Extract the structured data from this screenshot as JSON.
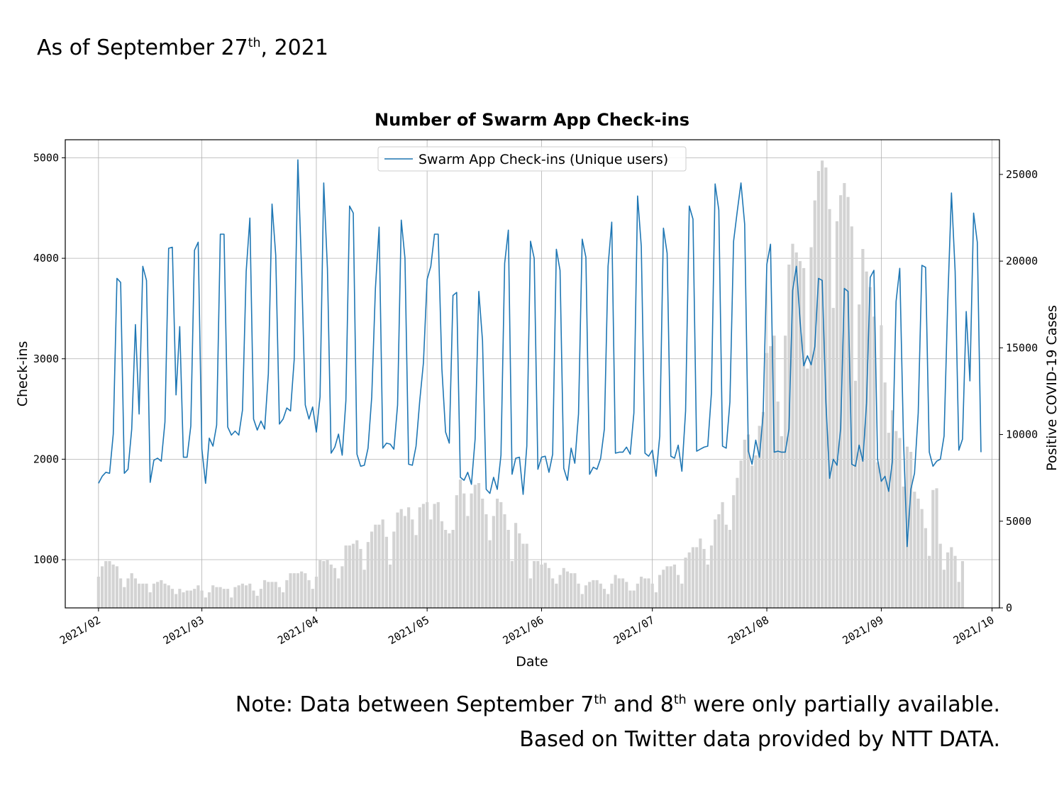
{
  "header": {
    "text_prefix": "As of September 27",
    "sup": "th",
    "text_suffix": ", 2021"
  },
  "notes": {
    "line1_a": "Note: Data between September 7",
    "line1_sup1": "th",
    "line1_b": " and 8",
    "line1_sup2": "th",
    "line1_c": " were only partially available.",
    "line2": "Based on Twitter data provided by NTT DATA."
  },
  "chart_data": {
    "type": "line",
    "title": "Number of Swarm App Check-ins",
    "xlabel": "Date",
    "ylabel": "Check-ins",
    "y2label": "Positive COVID-19 Cases",
    "x_range": [
      "2021-01-23",
      "2021-10-03"
    ],
    "ylim": [
      520,
      5180
    ],
    "y2lim": [
      0,
      27000
    ],
    "y_ticks": [
      1000,
      2000,
      3000,
      4000,
      5000
    ],
    "y2_ticks": [
      0,
      5000,
      10000,
      15000,
      20000,
      25000
    ],
    "x_ticks": [
      "2021/02",
      "2021/03",
      "2021/04",
      "2021/05",
      "2021/06",
      "2021/07",
      "2021/08",
      "2021/09",
      "2021/10"
    ],
    "x_tick_dates": [
      "2021-02-01",
      "2021-03-01",
      "2021-04-01",
      "2021-05-01",
      "2021-06-01",
      "2021-07-01",
      "2021-08-01",
      "2021-09-01",
      "2021-10-01"
    ],
    "grid": true,
    "legend": "top-center",
    "line_color": "#1f77b4",
    "bar_color": "#d3d3d3",
    "series": [
      {
        "name": "Swarm App Check-ins (Unique users)",
        "axis": "left",
        "style": "line",
        "start_date": "2021-02-01",
        "values": [
          1760,
          1830,
          1870,
          1860,
          2250,
          3800,
          3760,
          1860,
          1900,
          2300,
          3340,
          2450,
          3920,
          3780,
          1770,
          1990,
          2010,
          1980,
          2370,
          4100,
          4110,
          2640,
          3320,
          2020,
          2020,
          2330,
          4080,
          4160,
          2100,
          1760,
          2210,
          2130,
          2340,
          4240,
          4240,
          2320,
          2240,
          2280,
          2240,
          2490,
          3870,
          4400,
          2400,
          2290,
          2380,
          2300,
          2850,
          4540,
          4030,
          2350,
          2400,
          2510,
          2480,
          2990,
          4980,
          3890,
          2540,
          2400,
          2520,
          2270,
          2620,
          4750,
          3900,
          2060,
          2120,
          2250,
          2040,
          2580,
          4520,
          4450,
          2050,
          1930,
          1940,
          2110,
          2620,
          3700,
          4310,
          2110,
          2160,
          2150,
          2100,
          2540,
          4380,
          4000,
          1950,
          1940,
          2130,
          2580,
          2960,
          3790,
          3920,
          4240,
          4240,
          2900,
          2270,
          2160,
          3630,
          3660,
          1820,
          1790,
          1870,
          1750,
          2200,
          3670,
          3180,
          1700,
          1660,
          1820,
          1700,
          2040,
          3950,
          4280,
          1850,
          2010,
          2020,
          1650,
          2130,
          4170,
          4000,
          1900,
          2020,
          2030,
          1870,
          2050,
          4090,
          3880,
          1910,
          1790,
          2110,
          1960,
          2450,
          4190,
          4010,
          1850,
          1920,
          1900,
          2010,
          2300,
          3920,
          4360,
          2060,
          2070,
          2070,
          2120,
          2050,
          2460,
          4620,
          4120,
          2060,
          2030,
          2090,
          1830,
          2230,
          4300,
          4050,
          2030,
          2010,
          2140,
          1880,
          2480,
          4520,
          4390,
          2080,
          2100,
          2120,
          2130,
          2660,
          4740,
          4480,
          2130,
          2110,
          2570,
          4170,
          4470,
          4750,
          4340,
          2080,
          1950,
          2190,
          2020,
          2450,
          3940,
          4140,
          2070,
          2080,
          2070,
          2070,
          2300,
          3680,
          3920,
          3380,
          2930,
          3030,
          2940,
          3120,
          3800,
          3780,
          2570,
          1810,
          2000,
          1940,
          2310,
          3700,
          3670,
          1950,
          1930,
          2140,
          1980,
          2560,
          3810,
          3880,
          2000,
          1780,
          1830,
          1680,
          1980,
          3570,
          3900,
          2210,
          1130,
          1700,
          1860,
          2460,
          3930,
          3910,
          2070,
          1930,
          1980,
          2000,
          2230,
          3570,
          4650,
          3870,
          2090,
          2200,
          3470,
          2780,
          4450,
          4160,
          2070
        ]
      },
      {
        "name": "Positive COVID-19 Cases",
        "axis": "right",
        "style": "bar",
        "start_date": "2021-02-01",
        "values": [
          1800,
          2400,
          2700,
          2700,
          2500,
          2400,
          1700,
          1200,
          1700,
          2000,
          1700,
          1400,
          1400,
          1400,
          900,
          1400,
          1500,
          1600,
          1400,
          1300,
          1100,
          800,
          1100,
          900,
          1000,
          1000,
          1100,
          1300,
          1000,
          600,
          900,
          1300,
          1200,
          1200,
          1100,
          1100,
          600,
          1200,
          1300,
          1400,
          1300,
          1400,
          1000,
          700,
          1100,
          1600,
          1500,
          1500,
          1500,
          1200,
          900,
          1600,
          2000,
          2000,
          2000,
          2100,
          2000,
          1600,
          1100,
          1800,
          2800,
          2700,
          2800,
          2500,
          2300,
          1700,
          2400,
          3600,
          3600,
          3700,
          3900,
          3400,
          2200,
          3800,
          4400,
          4800,
          4800,
          5100,
          4100,
          2500,
          4400,
          5500,
          5700,
          5300,
          5800,
          5100,
          4200,
          5800,
          6000,
          6100,
          5100,
          6000,
          6100,
          5000,
          4500,
          4300,
          4500,
          6500,
          7400,
          6600,
          5300,
          6600,
          7100,
          7200,
          6300,
          5400,
          3900,
          5300,
          6300,
          6100,
          5400,
          4500,
          2700,
          4900,
          4300,
          3700,
          3700,
          1700,
          2700,
          2700,
          2500,
          2600,
          2300,
          1700,
          1400,
          1900,
          2300,
          2100,
          2000,
          2000,
          1400,
          800,
          1300,
          1500,
          1600,
          1600,
          1400,
          1100,
          800,
          1400,
          1900,
          1700,
          1700,
          1500,
          1000,
          1000,
          1400,
          1800,
          1700,
          1700,
          1400,
          900,
          1900,
          2200,
          2400,
          2400,
          2500,
          1900,
          1400,
          2900,
          3200,
          3500,
          3500,
          4000,
          3400,
          2500,
          3600,
          5100,
          5400,
          6100,
          4800,
          4500,
          6500,
          7500,
          8500,
          9700,
          10000,
          8200,
          8800,
          10500,
          11300,
          14700,
          15100,
          15700,
          11900,
          9900,
          15700,
          19800,
          21000,
          20500,
          20000,
          19600,
          13800,
          20800,
          23500,
          25200,
          25800,
          25400,
          23000,
          17300,
          22300,
          23800,
          24500,
          23700,
          22000,
          13100,
          17500,
          20700,
          19400,
          18500,
          16800,
          8400,
          16300,
          13000,
          10100,
          11400,
          10200,
          9800,
          7000,
          9300,
          9000,
          6700,
          6300,
          5700,
          4600,
          3000,
          6800,
          6900,
          3700,
          2200,
          3200,
          3500,
          3000,
          1500,
          2700
        ]
      }
    ]
  }
}
